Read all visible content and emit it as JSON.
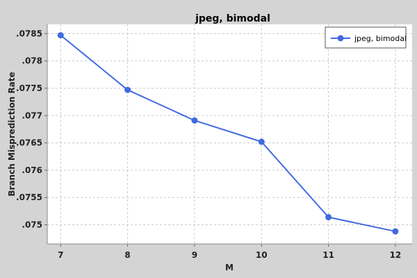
{
  "chart_data": {
    "type": "line",
    "title": "jpeg, bimodal",
    "xlabel": "M",
    "ylabel": "Branch Misprediction Rate",
    "x": [
      7,
      8,
      9,
      10,
      11,
      12
    ],
    "xticks": [
      "7",
      "8",
      "9",
      "10",
      "11",
      "12"
    ],
    "xlim": [
      6.8,
      12.25
    ],
    "ylim": [
      0.07465,
      0.07867
    ],
    "yticks": [
      0.075,
      0.0755,
      0.076,
      0.0765,
      0.077,
      0.0775,
      0.078,
      0.0785
    ],
    "ytick_labels": [
      ".075",
      ".0755",
      ".076",
      ".0765",
      ".077",
      ".0775",
      ".078",
      ".0785"
    ],
    "series": [
      {
        "name": "jpeg, bimodal",
        "color": "#4169e1",
        "values": [
          0.07847,
          0.07747,
          0.07691,
          0.07652,
          0.07514,
          0.07488
        ]
      }
    ],
    "grid": true,
    "legend": "top-right",
    "plot_background": "#ffffff",
    "page_background": "#d4d4d4",
    "grid_color": "#c8c8c8"
  }
}
